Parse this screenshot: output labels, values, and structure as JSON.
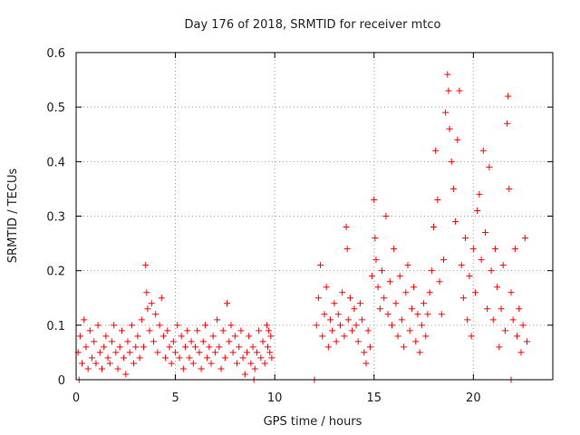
{
  "chart_data": {
    "type": "scatter",
    "title": "Day 176 of 2018, SRMTID for receiver mtco",
    "xlabel": "GPS time / hours",
    "ylabel": "SRMTID / TECUs",
    "xlim": [
      0,
      24
    ],
    "ylim": [
      0,
      0.6
    ],
    "xticks": [
      0,
      5,
      10,
      15,
      20
    ],
    "yticks": [
      0,
      0.1,
      0.2,
      0.3,
      0.4,
      0.5,
      0.6
    ],
    "xtick_labels": [
      "0",
      "5",
      "10",
      "15",
      "20"
    ],
    "ytick_labels": [
      "0",
      "0.1",
      "0.2",
      "0.3",
      "0.4",
      "0.5",
      "0.6"
    ],
    "grid": true,
    "marker": "plus",
    "series": [
      {
        "name": "SRMTID",
        "color": "#ff0000",
        "points": [
          [
            0.1,
            0.05
          ],
          [
            0.2,
            0.08
          ],
          [
            0.3,
            0.03
          ],
          [
            0.4,
            0.11
          ],
          [
            0.5,
            0.06
          ],
          [
            0.6,
            0.02
          ],
          [
            0.7,
            0.09
          ],
          [
            0.8,
            0.04
          ],
          [
            0.9,
            0.07
          ],
          [
            1.0,
            0.03
          ],
          [
            1.1,
            0.1
          ],
          [
            1.2,
            0.05
          ],
          [
            1.3,
            0.02
          ],
          [
            1.4,
            0.06
          ],
          [
            1.5,
            0.08
          ],
          [
            1.6,
            0.04
          ],
          [
            1.7,
            0.03
          ],
          [
            1.8,
            0.07
          ],
          [
            1.9,
            0.1
          ],
          [
            2.0,
            0.05
          ],
          [
            2.1,
            0.02
          ],
          [
            2.2,
            0.06
          ],
          [
            2.3,
            0.09
          ],
          [
            2.4,
            0.04
          ],
          [
            2.5,
            0.01
          ],
          [
            2.6,
            0.07
          ],
          [
            2.7,
            0.05
          ],
          [
            2.8,
            0.1
          ],
          [
            2.9,
            0.03
          ],
          [
            3.0,
            0.06
          ],
          [
            3.1,
            0.08
          ],
          [
            3.2,
            0.04
          ],
          [
            3.3,
            0.11
          ],
          [
            3.4,
            0.06
          ],
          [
            3.5,
            0.21
          ],
          [
            3.55,
            0.16
          ],
          [
            3.6,
            0.13
          ],
          [
            3.7,
            0.09
          ],
          [
            3.8,
            0.14
          ],
          [
            3.9,
            0.07
          ],
          [
            4.0,
            0.12
          ],
          [
            4.1,
            0.05
          ],
          [
            4.2,
            0.1
          ],
          [
            4.3,
            0.15
          ],
          [
            4.4,
            0.08
          ],
          [
            4.5,
            0.04
          ],
          [
            4.6,
            0.09
          ],
          [
            4.7,
            0.06
          ],
          [
            4.8,
            0.03
          ],
          [
            4.9,
            0.07
          ],
          [
            5.0,
            0.05
          ],
          [
            5.1,
            0.1
          ],
          [
            5.2,
            0.04
          ],
          [
            5.3,
            0.08
          ],
          [
            5.4,
            0.02
          ],
          [
            5.5,
            0.06
          ],
          [
            5.6,
            0.09
          ],
          [
            5.7,
            0.04
          ],
          [
            5.8,
            0.07
          ],
          [
            5.9,
            0.03
          ],
          [
            6.0,
            0.06
          ],
          [
            6.1,
            0.09
          ],
          [
            6.2,
            0.05
          ],
          [
            6.3,
            0.02
          ],
          [
            6.4,
            0.07
          ],
          [
            6.5,
            0.1
          ],
          [
            6.6,
            0.04
          ],
          [
            6.7,
            0.06
          ],
          [
            6.8,
            0.03
          ],
          [
            6.9,
            0.08
          ],
          [
            7.0,
            0.05
          ],
          [
            7.1,
            0.11
          ],
          [
            7.2,
            0.06
          ],
          [
            7.3,
            0.02
          ],
          [
            7.4,
            0.09
          ],
          [
            7.5,
            0.04
          ],
          [
            7.6,
            0.14
          ],
          [
            7.7,
            0.07
          ],
          [
            7.8,
            0.1
          ],
          [
            7.9,
            0.05
          ],
          [
            8.0,
            0.08
          ],
          [
            8.1,
            0.03
          ],
          [
            8.2,
            0.06
          ],
          [
            8.3,
            0.09
          ],
          [
            8.4,
            0.04
          ],
          [
            8.5,
            0.01
          ],
          [
            8.6,
            0.05
          ],
          [
            8.7,
            0.08
          ],
          [
            8.8,
            0.03
          ],
          [
            8.9,
            0.06
          ],
          [
            9.0,
            0.02
          ],
          [
            9.1,
            0.05
          ],
          [
            9.2,
            0.09
          ],
          [
            9.3,
            0.04
          ],
          [
            9.4,
            0.07
          ],
          [
            9.5,
            0.03
          ],
          [
            9.6,
            0.1
          ],
          [
            9.65,
            0.06
          ],
          [
            9.7,
            0.09
          ],
          [
            9.75,
            0.05
          ],
          [
            9.8,
            0.08
          ],
          [
            9.85,
            0.04
          ],
          [
            12.1,
            0.1
          ],
          [
            12.2,
            0.15
          ],
          [
            12.3,
            0.21
          ],
          [
            12.4,
            0.08
          ],
          [
            12.5,
            0.12
          ],
          [
            12.6,
            0.17
          ],
          [
            12.7,
            0.06
          ],
          [
            12.8,
            0.11
          ],
          [
            12.9,
            0.09
          ],
          [
            13.0,
            0.14
          ],
          [
            13.1,
            0.07
          ],
          [
            13.2,
            0.12
          ],
          [
            13.3,
            0.1
          ],
          [
            13.4,
            0.16
          ],
          [
            13.5,
            0.08
          ],
          [
            13.6,
            0.28
          ],
          [
            13.65,
            0.24
          ],
          [
            13.7,
            0.11
          ],
          [
            13.8,
            0.15
          ],
          [
            13.9,
            0.09
          ],
          [
            14.0,
            0.13
          ],
          [
            14.1,
            0.1
          ],
          [
            14.2,
            0.07
          ],
          [
            14.3,
            0.14
          ],
          [
            14.4,
            0.11
          ],
          [
            14.5,
            0.05
          ],
          [
            14.6,
            0.03
          ],
          [
            14.7,
            0.09
          ],
          [
            14.8,
            0.06
          ],
          [
            14.9,
            0.19
          ],
          [
            15.0,
            0.33
          ],
          [
            15.05,
            0.26
          ],
          [
            15.1,
            0.22
          ],
          [
            15.2,
            0.17
          ],
          [
            15.3,
            0.13
          ],
          [
            15.4,
            0.2
          ],
          [
            15.5,
            0.15
          ],
          [
            15.6,
            0.3
          ],
          [
            15.7,
            0.12
          ],
          [
            15.8,
            0.18
          ],
          [
            15.9,
            0.1
          ],
          [
            16.0,
            0.24
          ],
          [
            16.1,
            0.14
          ],
          [
            16.2,
            0.08
          ],
          [
            16.3,
            0.19
          ],
          [
            16.4,
            0.11
          ],
          [
            16.5,
            0.06
          ],
          [
            16.6,
            0.16
          ],
          [
            16.7,
            0.21
          ],
          [
            16.8,
            0.09
          ],
          [
            16.9,
            0.13
          ],
          [
            17.0,
            0.17
          ],
          [
            17.1,
            0.07
          ],
          [
            17.2,
            0.12
          ],
          [
            17.3,
            0.05
          ],
          [
            17.4,
            0.1
          ],
          [
            17.5,
            0.14
          ],
          [
            17.6,
            0.08
          ],
          [
            17.7,
            0.12
          ],
          [
            17.8,
            0.16
          ],
          [
            17.9,
            0.2
          ],
          [
            18.0,
            0.28
          ],
          [
            18.1,
            0.42
          ],
          [
            18.2,
            0.33
          ],
          [
            18.3,
            0.18
          ],
          [
            18.4,
            0.12
          ],
          [
            18.5,
            0.22
          ],
          [
            18.6,
            0.49
          ],
          [
            18.7,
            0.56
          ],
          [
            18.75,
            0.53
          ],
          [
            18.8,
            0.46
          ],
          [
            18.9,
            0.4
          ],
          [
            19.0,
            0.35
          ],
          [
            19.1,
            0.29
          ],
          [
            19.2,
            0.44
          ],
          [
            19.3,
            0.53
          ],
          [
            19.4,
            0.21
          ],
          [
            19.5,
            0.15
          ],
          [
            19.6,
            0.26
          ],
          [
            19.7,
            0.11
          ],
          [
            19.8,
            0.19
          ],
          [
            19.9,
            0.08
          ],
          [
            20.0,
            0.24
          ],
          [
            20.1,
            0.16
          ],
          [
            20.2,
            0.31
          ],
          [
            20.3,
            0.34
          ],
          [
            20.4,
            0.22
          ],
          [
            20.5,
            0.42
          ],
          [
            20.6,
            0.27
          ],
          [
            20.7,
            0.13
          ],
          [
            20.8,
            0.39
          ],
          [
            20.9,
            0.2
          ],
          [
            21.0,
            0.11
          ],
          [
            21.1,
            0.24
          ],
          [
            21.2,
            0.17
          ],
          [
            21.3,
            0.06
          ],
          [
            21.4,
            0.13
          ],
          [
            21.5,
            0.21
          ],
          [
            21.6,
            0.09
          ],
          [
            21.7,
            0.47
          ],
          [
            21.75,
            0.52
          ],
          [
            21.8,
            0.35
          ],
          [
            21.9,
            0.16
          ],
          [
            22.0,
            0.11
          ],
          [
            22.1,
            0.24
          ],
          [
            22.2,
            0.08
          ],
          [
            22.3,
            0.13
          ],
          [
            22.4,
            0.05
          ],
          [
            22.5,
            0.1
          ],
          [
            22.6,
            0.26
          ],
          [
            22.7,
            0.07
          ],
          [
            0.15,
            0.0
          ],
          [
            8.95,
            0.0
          ],
          [
            12.0,
            0.0
          ],
          [
            21.9,
            0.0
          ]
        ]
      }
    ]
  }
}
